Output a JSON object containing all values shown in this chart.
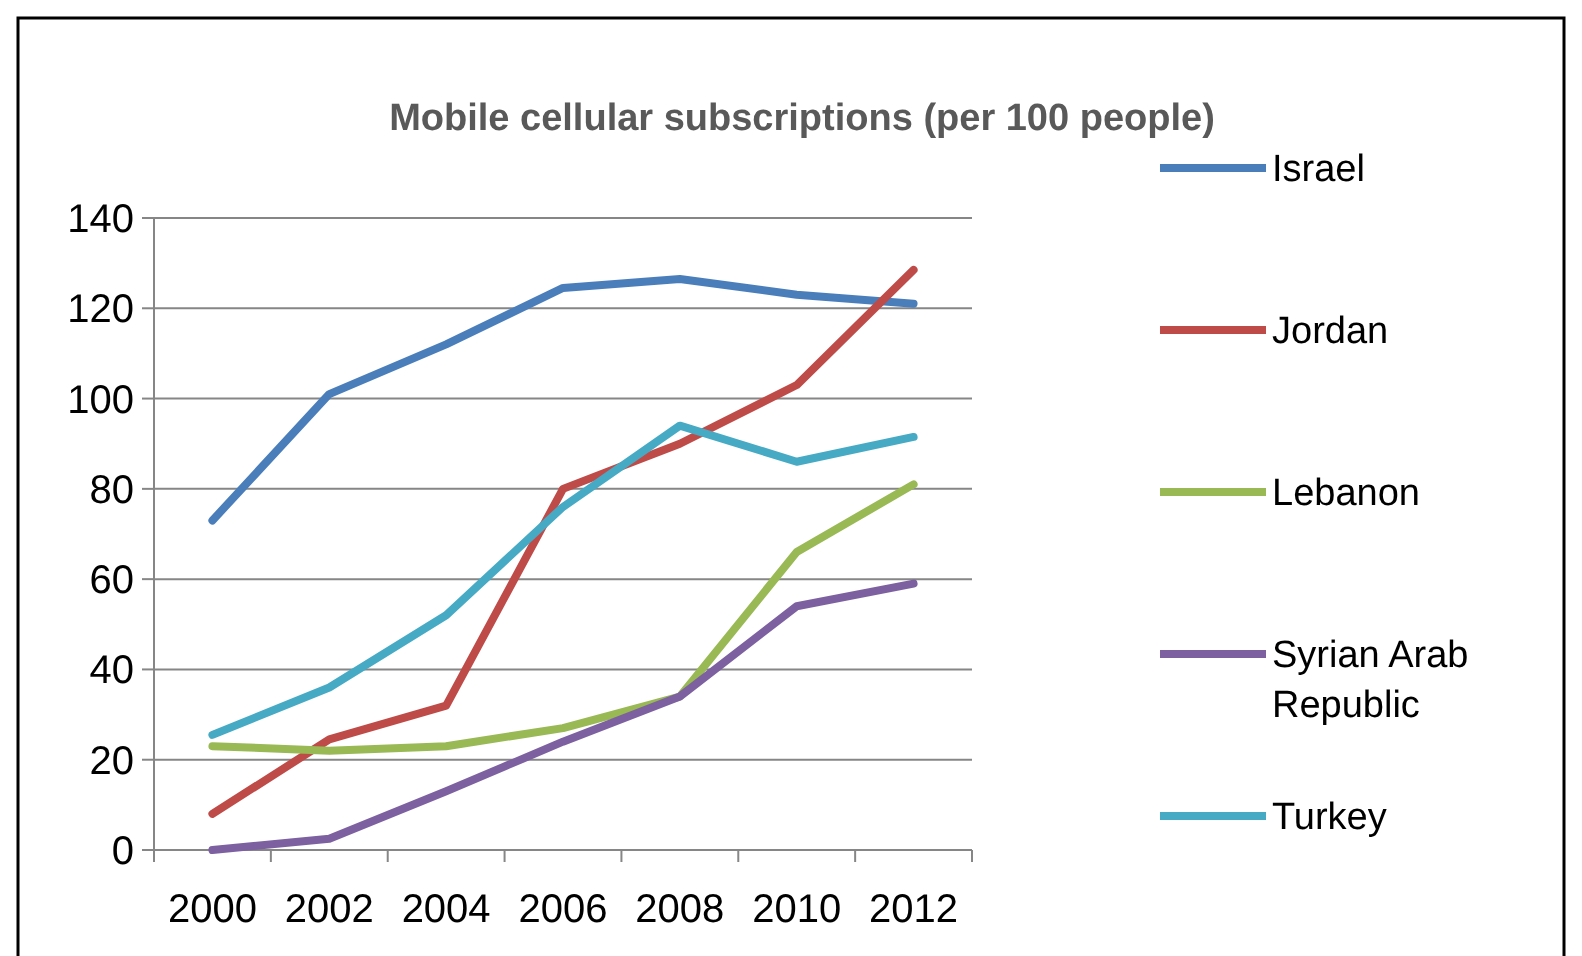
{
  "chart_data": {
    "type": "line",
    "title": "Mobile cellular subscriptions (per 100 people)",
    "categories": [
      "2000",
      "2002",
      "2004",
      "2006",
      "2008",
      "2010",
      "2012"
    ],
    "series": [
      {
        "name": "Israel",
        "color": "#4a7ebb",
        "values": [
          73,
          101,
          112,
          124.5,
          126.5,
          123,
          121
        ]
      },
      {
        "name": "Jordan",
        "color": "#be4b48",
        "values": [
          8,
          24.5,
          32,
          80,
          90,
          103,
          128.5
        ]
      },
      {
        "name": "Lebanon",
        "color": "#98b954",
        "values": [
          23,
          22,
          23,
          27,
          34,
          66,
          81
        ]
      },
      {
        "name": "Syrian Arab Republic",
        "color": "#7d60a0",
        "values": [
          0,
          2.5,
          13,
          24,
          34,
          54,
          59
        ]
      },
      {
        "name": "Turkey",
        "color": "#46aac5",
        "values": [
          25.5,
          36,
          52,
          76,
          94,
          86,
          91.5
        ]
      }
    ],
    "ylim": [
      0,
      140
    ],
    "yticks": [
      0,
      20,
      40,
      60,
      80,
      100,
      120,
      140
    ],
    "grid": "y",
    "legend": "right",
    "marker": "none"
  }
}
